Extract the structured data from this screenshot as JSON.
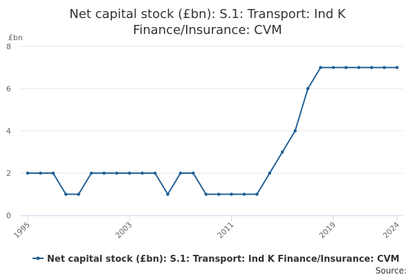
{
  "chart_data": {
    "type": "line",
    "title_line1": "Net capital stock (£bn): S.1: Transport: Ind K",
    "title_line2": "Finance/Insurance: CVM",
    "unit_label": "£bn",
    "x": [
      1995,
      1996,
      1997,
      1998,
      1999,
      2000,
      2001,
      2002,
      2003,
      2004,
      2005,
      2006,
      2007,
      2008,
      2009,
      2010,
      2011,
      2012,
      2013,
      2014,
      2015,
      2016,
      2017,
      2018,
      2019,
      2020,
      2021,
      2022,
      2023,
      2024
    ],
    "xticks": [
      "1995",
      "2003",
      "2011",
      "2019",
      "2024"
    ],
    "xtick_values": [
      1995,
      2003,
      2011,
      2019,
      2024
    ],
    "xlim": [
      1995,
      2024
    ],
    "ylim": [
      0,
      8
    ],
    "yticks": [
      "0",
      "2",
      "4",
      "6",
      "8"
    ],
    "ytick_values": [
      0,
      2,
      4,
      6,
      8
    ],
    "series": [
      {
        "name": "Net capital stock (£bn): S.1: Transport: Ind K Finance/Insurance: CVM",
        "values": [
          2,
          2,
          2,
          1,
          1,
          2,
          2,
          2,
          2,
          2,
          2,
          1,
          2,
          2,
          1,
          1,
          1,
          1,
          1,
          2,
          3,
          4,
          6,
          7,
          7,
          7,
          7,
          7,
          7,
          7
        ],
        "color": "#206095"
      }
    ],
    "grid": true,
    "legend_position": "bottom"
  },
  "credits": {
    "source_label": "Source:"
  }
}
